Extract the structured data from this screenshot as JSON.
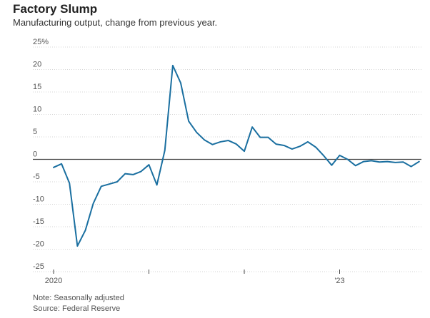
{
  "header": {
    "title": "Factory Slump",
    "subtitle": "Manufacturing output, change from previous year."
  },
  "chart_data": {
    "type": "line",
    "title": "Factory Slump",
    "subtitle": "Manufacturing output, change from previous year.",
    "xlabel": "",
    "ylabel": "",
    "ylim": [
      -25,
      25
    ],
    "yticks": [
      {
        "value": 25,
        "label": "25%"
      },
      {
        "value": 20,
        "label": "20"
      },
      {
        "value": 15,
        "label": "15"
      },
      {
        "value": 10,
        "label": "10"
      },
      {
        "value": 5,
        "label": "5"
      },
      {
        "value": 0,
        "label": "0"
      },
      {
        "value": -5,
        "label": "-5"
      },
      {
        "value": -10,
        "label": "-10"
      },
      {
        "value": -15,
        "label": "-15"
      },
      {
        "value": -20,
        "label": "-20"
      },
      {
        "value": -25,
        "label": "-25"
      }
    ],
    "xticks": [
      {
        "index": 0,
        "label": "2020"
      },
      {
        "index": 12,
        "label": ""
      },
      {
        "index": 24,
        "label": ""
      },
      {
        "index": 36,
        "label": "'23"
      }
    ],
    "grid": true,
    "series": [
      {
        "name": "Manufacturing output, change from previous year",
        "color": "#1a6fa0",
        "values": [
          -1.8,
          -1.0,
          -5.3,
          -19.3,
          -15.8,
          -9.8,
          -6.0,
          -5.5,
          -5.0,
          -3.2,
          -3.4,
          -2.7,
          -1.2,
          -5.7,
          2.0,
          20.9,
          17.0,
          8.5,
          6.0,
          4.3,
          3.3,
          3.9,
          4.2,
          3.4,
          1.8,
          7.2,
          4.9,
          4.9,
          3.4,
          3.1,
          2.3,
          2.9,
          3.9,
          2.7,
          0.8,
          -1.3,
          0.9,
          0.0,
          -1.4,
          -0.5,
          -0.3,
          -0.6,
          -0.5,
          -0.7,
          -0.6,
          -1.6,
          -0.5
        ]
      }
    ]
  },
  "footer": {
    "note": "Note: Seasonally adjusted",
    "source": "Source: Federal Reserve"
  }
}
